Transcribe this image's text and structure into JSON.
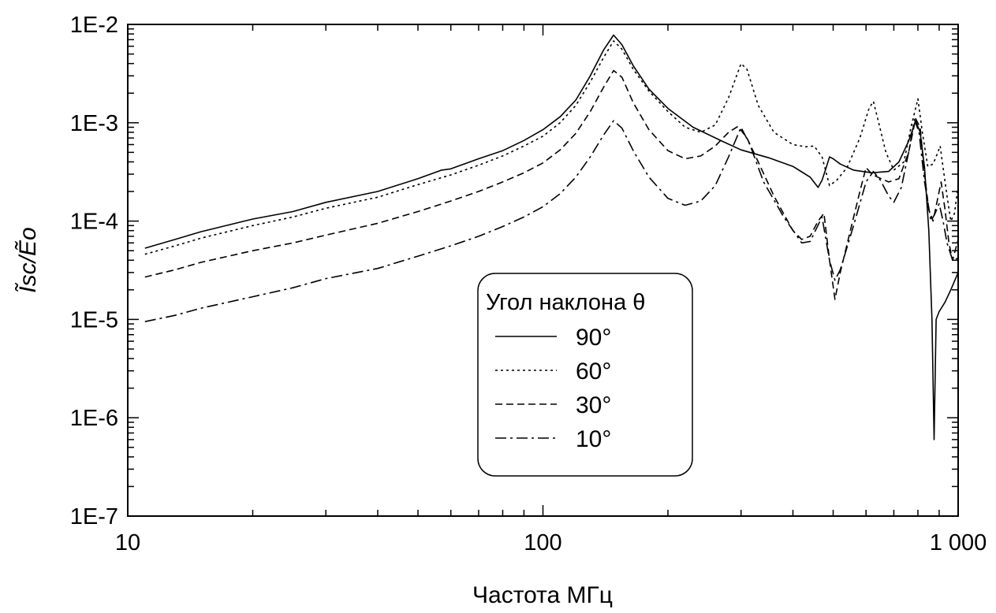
{
  "chart_data": {
    "type": "line",
    "x_scale": "log",
    "y_scale": "log",
    "xlabel": "Частота МГц",
    "ylabel": "Ĩsc/Ẽo",
    "xlim": [
      10,
      1000
    ],
    "ylim": [
      1e-07,
      0.01
    ],
    "x_ticks": [
      {
        "value": 10,
        "label": "10"
      },
      {
        "value": 100,
        "label": "100"
      },
      {
        "value": 1000,
        "label": "1 000"
      }
    ],
    "y_ticks": [
      {
        "value": 1e-07,
        "label": "1E-7"
      },
      {
        "value": 1e-06,
        "label": "1E-6"
      },
      {
        "value": 1e-05,
        "label": "1E-5"
      },
      {
        "value": 0.0001,
        "label": "1E-4"
      },
      {
        "value": 0.001,
        "label": "1E-3"
      },
      {
        "value": 0.01,
        "label": "1E-2"
      }
    ],
    "grid": false,
    "legend": {
      "title": "Угол наклона θ",
      "placement": "center"
    },
    "series": [
      {
        "name": "90°",
        "dash": "solid",
        "points": [
          [
            11,
            5.3e-05
          ],
          [
            13,
            6.5e-05
          ],
          [
            15,
            7.8e-05
          ],
          [
            20,
            0.000105
          ],
          [
            25,
            0.000125
          ],
          [
            30,
            0.000155
          ],
          [
            40,
            0.0002
          ],
          [
            50,
            0.00027
          ],
          [
            57,
            0.00033
          ],
          [
            60,
            0.00034
          ],
          [
            70,
            0.00043
          ],
          [
            80,
            0.00052
          ],
          [
            90,
            0.00066
          ],
          [
            100,
            0.00085
          ],
          [
            110,
            0.00115
          ],
          [
            120,
            0.0017
          ],
          [
            130,
            0.003
          ],
          [
            140,
            0.0055
          ],
          [
            148,
            0.0078
          ],
          [
            155,
            0.0062
          ],
          [
            165,
            0.0038
          ],
          [
            180,
            0.0022
          ],
          [
            200,
            0.0014
          ],
          [
            230,
            0.0009
          ],
          [
            270,
            0.00065
          ],
          [
            300,
            0.00053
          ],
          [
            350,
            0.00044
          ],
          [
            400,
            0.00036
          ],
          [
            440,
            0.00028
          ],
          [
            460,
            0.00022
          ],
          [
            470,
            0.00026
          ],
          [
            480,
            0.00034
          ],
          [
            490,
            0.00045
          ],
          [
            500,
            0.00043
          ],
          [
            520,
            0.00038
          ],
          [
            560,
            0.00033
          ],
          [
            620,
            0.00031
          ],
          [
            680,
            0.00032
          ],
          [
            720,
            0.0004
          ],
          [
            760,
            0.00065
          ],
          [
            790,
            0.00105
          ],
          [
            810,
            0.0008
          ],
          [
            830,
            0.00035
          ],
          [
            850,
            8e-05
          ],
          [
            865,
            1e-05
          ],
          [
            875,
            6e-07
          ],
          [
            885,
            1e-05
          ],
          [
            900,
            1.2e-05
          ],
          [
            930,
            1.5e-05
          ],
          [
            960,
            2e-05
          ],
          [
            1000,
            3e-05
          ]
        ]
      },
      {
        "name": "60°",
        "dash": "dotted",
        "points": [
          [
            11,
            4.6e-05
          ],
          [
            13,
            5.6e-05
          ],
          [
            15,
            6.7e-05
          ],
          [
            20,
            9e-05
          ],
          [
            25,
            0.00011
          ],
          [
            30,
            0.000135
          ],
          [
            40,
            0.000175
          ],
          [
            50,
            0.000235
          ],
          [
            60,
            0.000295
          ],
          [
            70,
            0.00037
          ],
          [
            80,
            0.00046
          ],
          [
            90,
            0.00058
          ],
          [
            100,
            0.00073
          ],
          [
            110,
            0.001
          ],
          [
            120,
            0.0015
          ],
          [
            130,
            0.0026
          ],
          [
            140,
            0.0046
          ],
          [
            148,
            0.0068
          ],
          [
            155,
            0.0056
          ],
          [
            165,
            0.0035
          ],
          [
            180,
            0.0021
          ],
          [
            200,
            0.0013
          ],
          [
            220,
            0.0009
          ],
          [
            240,
            0.0008
          ],
          [
            260,
            0.00095
          ],
          [
            280,
            0.0018
          ],
          [
            300,
            0.004
          ],
          [
            310,
            0.0035
          ],
          [
            330,
            0.0015
          ],
          [
            360,
            0.0008
          ],
          [
            400,
            0.0006
          ],
          [
            430,
            0.00057
          ],
          [
            450,
            0.00058
          ],
          [
            470,
            0.00045
          ],
          [
            490,
            0.00023
          ],
          [
            510,
            0.00026
          ],
          [
            540,
            0.00035
          ],
          [
            580,
            0.0007
          ],
          [
            610,
            0.0014
          ],
          [
            625,
            0.00165
          ],
          [
            640,
            0.0011
          ],
          [
            670,
            0.0005
          ],
          [
            700,
            0.00033
          ],
          [
            740,
            0.0004
          ],
          [
            770,
            0.0009
          ],
          [
            800,
            0.00175
          ],
          [
            820,
            0.0008
          ],
          [
            845,
            0.00036
          ],
          [
            870,
            0.00038
          ],
          [
            890,
            0.00048
          ],
          [
            905,
            0.00058
          ],
          [
            920,
            0.00035
          ],
          [
            940,
            0.00018
          ],
          [
            960,
            0.0001
          ],
          [
            980,
            0.00012
          ],
          [
            1000,
            0.00023
          ]
        ]
      },
      {
        "name": "30°",
        "dash": "dashed",
        "points": [
          [
            11,
            2.7e-05
          ],
          [
            13,
            3.2e-05
          ],
          [
            15,
            3.8e-05
          ],
          [
            20,
            5e-05
          ],
          [
            25,
            6e-05
          ],
          [
            30,
            7.2e-05
          ],
          [
            40,
            9.5e-05
          ],
          [
            50,
            0.000125
          ],
          [
            60,
            0.00016
          ],
          [
            70,
            0.0002
          ],
          [
            80,
            0.00025
          ],
          [
            90,
            0.00031
          ],
          [
            100,
            0.00039
          ],
          [
            110,
            0.00053
          ],
          [
            120,
            0.00078
          ],
          [
            130,
            0.0013
          ],
          [
            140,
            0.0023
          ],
          [
            148,
            0.0034
          ],
          [
            155,
            0.0029
          ],
          [
            165,
            0.0016
          ],
          [
            180,
            0.00085
          ],
          [
            200,
            0.00052
          ],
          [
            220,
            0.00043
          ],
          [
            240,
            0.00046
          ],
          [
            260,
            0.00058
          ],
          [
            280,
            0.0008
          ],
          [
            295,
            0.00092
          ],
          [
            310,
            0.0007
          ],
          [
            330,
            0.0004
          ],
          [
            360,
            0.00018
          ],
          [
            400,
            8e-05
          ],
          [
            420,
            6.5e-05
          ],
          [
            440,
            7e-05
          ],
          [
            460,
            0.0001
          ],
          [
            475,
            0.00012
          ],
          [
            490,
            4e-05
          ],
          [
            505,
            1.6e-05
          ],
          [
            520,
            3e-05
          ],
          [
            550,
            8e-05
          ],
          [
            580,
            0.0002
          ],
          [
            600,
            0.00035
          ],
          [
            620,
            0.0003
          ],
          [
            640,
            0.00028
          ],
          [
            680,
            0.00025
          ],
          [
            720,
            0.00027
          ],
          [
            760,
            0.0005
          ],
          [
            790,
            0.0011
          ],
          [
            810,
            0.0009
          ],
          [
            830,
            0.0003
          ],
          [
            850,
            0.00013
          ],
          [
            870,
            0.0001
          ],
          [
            890,
            0.00016
          ],
          [
            910,
            0.00025
          ],
          [
            930,
            0.00013
          ],
          [
            950,
            6e-05
          ],
          [
            970,
            4e-05
          ],
          [
            1000,
            6.5e-05
          ]
        ]
      },
      {
        "name": "10°",
        "dash": "dashdot",
        "points": [
          [
            11,
            9.5e-06
          ],
          [
            13,
            1.1e-05
          ],
          [
            15,
            1.3e-05
          ],
          [
            20,
            1.7e-05
          ],
          [
            25,
            2.1e-05
          ],
          [
            30,
            2.6e-05
          ],
          [
            40,
            3.3e-05
          ],
          [
            50,
            4.4e-05
          ],
          [
            60,
            5.6e-05
          ],
          [
            70,
            7e-05
          ],
          [
            80,
            8.8e-05
          ],
          [
            90,
            0.00011
          ],
          [
            100,
            0.00014
          ],
          [
            110,
            0.00019
          ],
          [
            120,
            0.00028
          ],
          [
            130,
            0.00045
          ],
          [
            140,
            0.00075
          ],
          [
            148,
            0.00105
          ],
          [
            155,
            0.00088
          ],
          [
            165,
            0.00052
          ],
          [
            180,
            0.00028
          ],
          [
            200,
            0.00017
          ],
          [
            220,
            0.000145
          ],
          [
            240,
            0.00016
          ],
          [
            260,
            0.00023
          ],
          [
            280,
            0.00045
          ],
          [
            300,
            0.0009
          ],
          [
            315,
            0.0006
          ],
          [
            340,
            0.00025
          ],
          [
            380,
            0.00011
          ],
          [
            420,
            6e-05
          ],
          [
            440,
            6.2e-05
          ],
          [
            470,
            0.00011
          ],
          [
            490,
            4e-05
          ],
          [
            505,
            2.5e-05
          ],
          [
            520,
            3.2e-05
          ],
          [
            560,
            9e-05
          ],
          [
            600,
            0.00025
          ],
          [
            625,
            0.00032
          ],
          [
            650,
            0.00026
          ],
          [
            680,
            0.00018
          ],
          [
            700,
            0.000155
          ],
          [
            730,
            0.00022
          ],
          [
            760,
            0.0005
          ],
          [
            785,
            0.00108
          ],
          [
            805,
            0.0008
          ],
          [
            830,
            0.00025
          ],
          [
            860,
            0.0001
          ],
          [
            880,
            0.00012
          ],
          [
            900,
            0.00015
          ],
          [
            920,
            0.0001
          ],
          [
            940,
            6e-05
          ],
          [
            970,
            4e-05
          ],
          [
            1000,
            4.2e-05
          ]
        ]
      }
    ]
  }
}
